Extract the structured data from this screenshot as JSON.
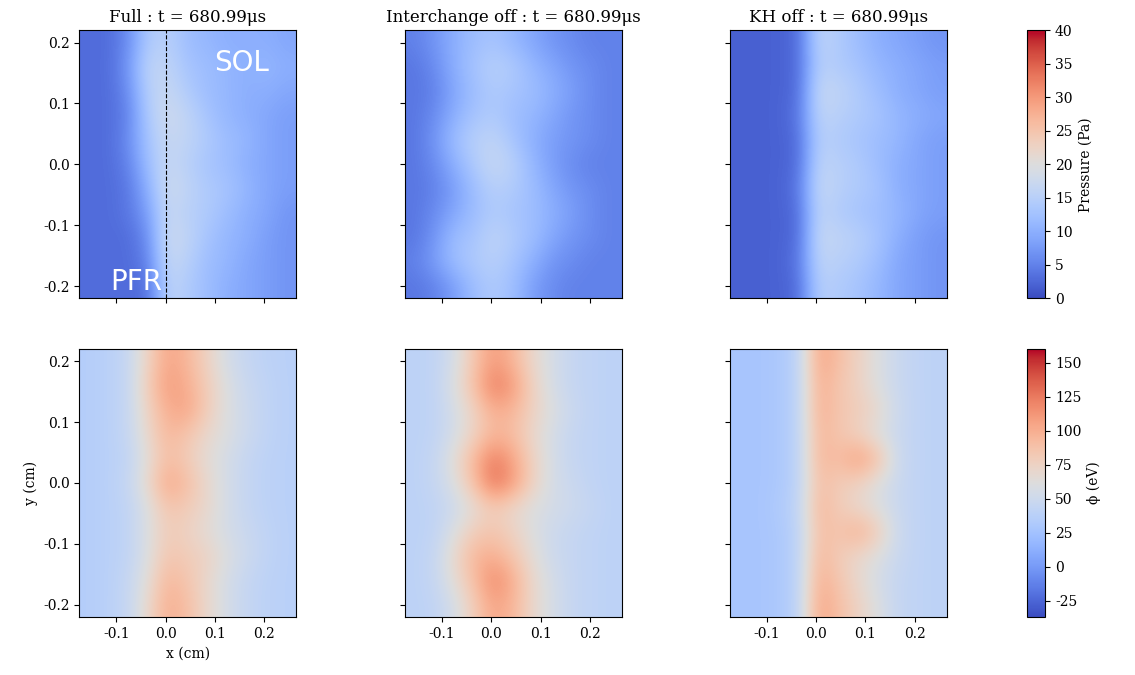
{
  "chart_data": [
    {
      "type": "heatmap",
      "title": "Full : t = 680.99μs",
      "tick_labels": "y",
      "xlim": [
        -0.175,
        0.265
      ],
      "ylim": [
        -0.22,
        0.22
      ],
      "xticks": [
        -0.1,
        0.0,
        0.1,
        0.2
      ],
      "yticks": [
        -0.2,
        -0.1,
        0.0,
        0.1,
        0.2
      ],
      "annotations": [
        "SOL",
        "PFR"
      ],
      "dashed_line_x": 0.0,
      "colorbar_range": [
        0,
        40
      ],
      "colorbar_ticks": [
        0,
        5,
        10,
        15,
        20,
        25,
        30,
        35,
        40
      ],
      "cells": [
        [
          3,
          3,
          3,
          3,
          16,
          14,
          12,
          10,
          9,
          8,
          7
        ],
        [
          3,
          3,
          3,
          5,
          17,
          15,
          12,
          11,
          9,
          8,
          7
        ],
        [
          3,
          3,
          3,
          6,
          18,
          16,
          13,
          11,
          10,
          8,
          7
        ],
        [
          3,
          3,
          4,
          8,
          17,
          15,
          14,
          12,
          10,
          9,
          7
        ],
        [
          3,
          3,
          4,
          10,
          18,
          16,
          14,
          13,
          11,
          9,
          8
        ],
        [
          3,
          3,
          5,
          12,
          17,
          15,
          13,
          12,
          10,
          9,
          8
        ],
        [
          3,
          3,
          6,
          13,
          17,
          16,
          14,
          12,
          11,
          9,
          8
        ],
        [
          3,
          3,
          5,
          14,
          18,
          16,
          13,
          11,
          10,
          9,
          8
        ],
        [
          3,
          3,
          6,
          15,
          17,
          14,
          12,
          11,
          10,
          10,
          9
        ],
        [
          3,
          3,
          7,
          16,
          16,
          13,
          12,
          11,
          10,
          11,
          10
        ],
        [
          3,
          3,
          6,
          14,
          15,
          12,
          11,
          10,
          10,
          10,
          9
        ]
      ]
    },
    {
      "type": "heatmap",
      "title": "Interchange off : t = 680.99μs",
      "tick_labels": false,
      "xlim": [
        -0.175,
        0.265
      ],
      "ylim": [
        -0.22,
        0.22
      ],
      "xticks": [
        -0.1,
        0.0,
        0.1,
        0.2
      ],
      "yticks": [
        -0.2,
        -0.1,
        0.0,
        0.1,
        0.2
      ],
      "colorbar_range": [
        0,
        40
      ],
      "colorbar_ticks": [
        0,
        5,
        10,
        15,
        20,
        25,
        30,
        35,
        40
      ],
      "cells": [
        [
          4,
          5,
          8,
          12,
          14,
          12,
          8,
          6,
          5,
          5,
          5
        ],
        [
          5,
          8,
          12,
          14,
          15,
          13,
          10,
          7,
          6,
          5,
          5
        ],
        [
          4,
          7,
          12,
          13,
          16,
          14,
          12,
          9,
          7,
          6,
          5
        ],
        [
          4,
          6,
          9,
          12,
          14,
          13,
          12,
          10,
          8,
          6,
          5
        ],
        [
          4,
          5,
          8,
          12,
          15,
          14,
          12,
          9,
          7,
          6,
          5
        ],
        [
          4,
          6,
          10,
          14,
          17,
          15,
          11,
          8,
          6,
          5,
          5
        ],
        [
          4,
          7,
          12,
          15,
          16,
          13,
          10,
          8,
          7,
          6,
          5
        ],
        [
          4,
          6,
          10,
          13,
          14,
          12,
          11,
          9,
          7,
          6,
          5
        ],
        [
          4,
          5,
          9,
          12,
          14,
          13,
          12,
          10,
          8,
          6,
          5
        ],
        [
          4,
          6,
          10,
          13,
          15,
          14,
          11,
          9,
          7,
          6,
          5
        ],
        [
          5,
          7,
          10,
          12,
          13,
          11,
          9,
          7,
          6,
          5,
          5
        ]
      ]
    },
    {
      "type": "heatmap",
      "title": "KH off : t = 680.99μs",
      "tick_labels": false,
      "xlim": [
        -0.175,
        0.265
      ],
      "ylim": [
        -0.22,
        0.22
      ],
      "xticks": [
        -0.1,
        0.0,
        0.1,
        0.2
      ],
      "yticks": [
        -0.2,
        -0.1,
        0.0,
        0.1,
        0.2
      ],
      "colorbar_label": "Pressure (Pa)",
      "colorbar_range": [
        0,
        40
      ],
      "colorbar_ticks": [
        0,
        5,
        10,
        15,
        20,
        25,
        30,
        35,
        40
      ],
      "cells": [
        [
          2,
          2,
          2,
          3,
          15,
          14,
          13,
          11,
          9,
          8,
          7
        ],
        [
          2,
          2,
          2,
          4,
          16,
          15,
          14,
          12,
          9,
          8,
          7
        ],
        [
          2,
          2,
          2,
          3,
          17,
          16,
          15,
          13,
          10,
          8,
          7
        ],
        [
          2,
          2,
          2,
          3,
          16,
          14,
          13,
          12,
          11,
          9,
          8
        ],
        [
          2,
          2,
          2,
          4,
          17,
          15,
          14,
          13,
          10,
          9,
          8
        ],
        [
          2,
          2,
          2,
          3,
          16,
          15,
          14,
          12,
          10,
          9,
          8
        ],
        [
          2,
          2,
          2,
          3,
          15,
          14,
          13,
          12,
          11,
          9,
          8
        ],
        [
          2,
          2,
          2,
          4,
          16,
          15,
          14,
          13,
          11,
          10,
          9
        ],
        [
          2,
          2,
          2,
          3,
          17,
          16,
          14,
          12,
          10,
          9,
          8
        ],
        [
          2,
          2,
          2,
          3,
          15,
          14,
          13,
          11,
          10,
          9,
          8
        ],
        [
          2,
          2,
          2,
          3,
          16,
          14,
          12,
          10,
          9,
          8,
          7
        ]
      ]
    },
    {
      "type": "heatmap",
      "tick_labels": true,
      "x_label": "x (cm)",
      "y_label": "y (cm)",
      "xlim": [
        -0.175,
        0.265
      ],
      "ylim": [
        -0.22,
        0.22
      ],
      "xticks": [
        -0.1,
        0.0,
        0.1,
        0.2
      ],
      "yticks": [
        -0.2,
        -0.1,
        0.0,
        0.1,
        0.2
      ],
      "colorbar_range": [
        -37,
        160
      ],
      "colorbar_ticks": [
        -25,
        0,
        25,
        50,
        75,
        100,
        125,
        150
      ],
      "cells": [
        [
          35,
          38,
          45,
          70,
          100,
          90,
          70,
          55,
          45,
          40,
          38
        ],
        [
          35,
          38,
          45,
          65,
          95,
          85,
          70,
          55,
          45,
          40,
          38
        ],
        [
          35,
          38,
          42,
          60,
          85,
          80,
          75,
          60,
          50,
          42,
          38
        ],
        [
          35,
          38,
          42,
          60,
          80,
          75,
          65,
          55,
          48,
          42,
          38
        ],
        [
          35,
          38,
          42,
          60,
          85,
          80,
          70,
          55,
          45,
          40,
          38
        ],
        [
          35,
          38,
          45,
          70,
          105,
          90,
          70,
          55,
          45,
          40,
          38
        ],
        [
          35,
          38,
          42,
          65,
          90,
          80,
          65,
          55,
          45,
          40,
          38
        ],
        [
          35,
          38,
          45,
          70,
          95,
          85,
          70,
          60,
          50,
          42,
          38
        ],
        [
          35,
          38,
          45,
          75,
          100,
          105,
          80,
          60,
          50,
          42,
          38
        ],
        [
          35,
          38,
          45,
          80,
          110,
          100,
          80,
          60,
          48,
          42,
          38
        ],
        [
          35,
          38,
          45,
          75,
          105,
          95,
          75,
          55,
          45,
          40,
          38
        ]
      ]
    },
    {
      "type": "heatmap",
      "tick_labels": "x",
      "xlim": [
        -0.175,
        0.265
      ],
      "ylim": [
        -0.22,
        0.22
      ],
      "xticks": [
        -0.1,
        0.0,
        0.1,
        0.2
      ],
      "yticks": [
        -0.2,
        -0.1,
        0.0,
        0.1,
        0.2
      ],
      "colorbar_range": [
        -37,
        160
      ],
      "colorbar_ticks": [
        -25,
        0,
        25,
        50,
        75,
        100,
        125,
        150
      ],
      "cells": [
        [
          40,
          42,
          55,
          80,
          105,
          95,
          70,
          55,
          45,
          42,
          40
        ],
        [
          40,
          45,
          65,
          90,
          120,
          100,
          70,
          55,
          45,
          42,
          40
        ],
        [
          40,
          45,
          70,
          95,
          100,
          85,
          65,
          50,
          45,
          42,
          40
        ],
        [
          40,
          42,
          60,
          80,
          85,
          75,
          60,
          50,
          45,
          42,
          40
        ],
        [
          40,
          42,
          50,
          65,
          80,
          70,
          60,
          55,
          50,
          45,
          40
        ],
        [
          40,
          45,
          60,
          90,
          130,
          110,
          75,
          55,
          48,
          42,
          40
        ],
        [
          40,
          45,
          65,
          95,
          125,
          105,
          75,
          55,
          45,
          42,
          40
        ],
        [
          40,
          42,
          55,
          75,
          95,
          90,
          70,
          55,
          45,
          42,
          40
        ],
        [
          40,
          42,
          55,
          75,
          100,
          95,
          75,
          60,
          48,
          42,
          40
        ],
        [
          40,
          42,
          60,
          90,
          125,
          110,
          75,
          55,
          45,
          42,
          40
        ],
        [
          40,
          42,
          55,
          85,
          110,
          95,
          70,
          55,
          45,
          42,
          40
        ]
      ]
    },
    {
      "type": "heatmap",
      "tick_labels": "x",
      "xlim": [
        -0.175,
        0.265
      ],
      "ylim": [
        -0.22,
        0.22
      ],
      "xticks": [
        -0.1,
        0.0,
        0.1,
        0.2
      ],
      "yticks": [
        -0.2,
        -0.1,
        0.0,
        0.1,
        0.2
      ],
      "colorbar_label": "ϕ (eV)",
      "colorbar_range": [
        -37,
        160
      ],
      "colorbar_ticks": [
        -25,
        0,
        25,
        50,
        75,
        100,
        125,
        150
      ],
      "cells": [
        [
          28,
          28,
          30,
          40,
          105,
          90,
          75,
          60,
          45,
          42,
          40
        ],
        [
          28,
          28,
          30,
          40,
          100,
          85,
          70,
          55,
          45,
          42,
          40
        ],
        [
          28,
          28,
          30,
          40,
          95,
          80,
          70,
          60,
          48,
          42,
          40
        ],
        [
          28,
          28,
          30,
          40,
          90,
          85,
          100,
          80,
          50,
          42,
          40
        ],
        [
          28,
          28,
          32,
          42,
          95,
          80,
          70,
          60,
          48,
          42,
          40
        ],
        [
          28,
          28,
          30,
          40,
          90,
          80,
          75,
          60,
          48,
          42,
          40
        ],
        [
          28,
          28,
          30,
          40,
          95,
          90,
          110,
          90,
          50,
          42,
          40
        ],
        [
          28,
          28,
          30,
          40,
          95,
          85,
          75,
          60,
          48,
          42,
          40
        ],
        [
          28,
          28,
          30,
          40,
          100,
          85,
          80,
          70,
          50,
          42,
          40
        ],
        [
          28,
          28,
          30,
          40,
          100,
          85,
          75,
          60,
          48,
          42,
          40
        ],
        [
          28,
          28,
          30,
          40,
          105,
          90,
          75,
          60,
          48,
          42,
          40
        ]
      ]
    }
  ]
}
